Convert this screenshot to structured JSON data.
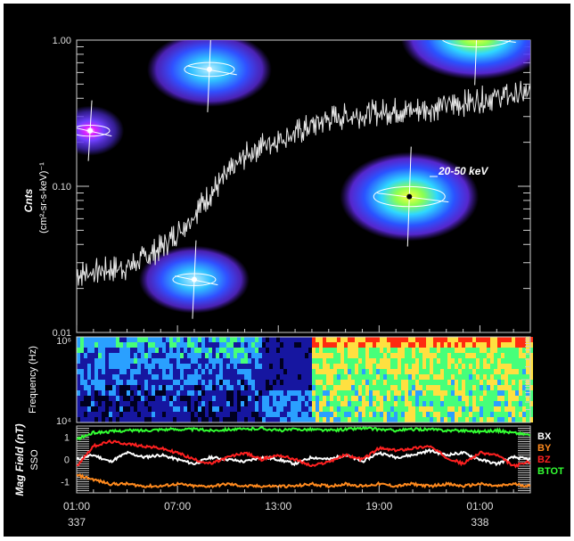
{
  "chart_data": [
    {
      "type": "line",
      "panel": "energetic-particle-counts",
      "ylabel": "Cnts",
      "ylabel_units": "(cm²-sr-s-keV)⁻¹",
      "y_scale": "log",
      "ylim": [
        0.01,
        1.0
      ],
      "y_ticks": [
        "1.00",
        "0.10",
        "0.01"
      ],
      "series": [
        {
          "name": "20-50 keV",
          "color": "#e8e8e8",
          "x_hours": [
            0,
            1,
            2,
            3,
            4,
            5,
            6,
            7,
            8,
            9,
            10,
            11,
            12,
            13,
            14,
            15,
            16,
            17,
            18,
            19,
            20,
            21,
            22,
            23,
            24,
            25,
            26,
            27
          ],
          "values": [
            0.025,
            0.026,
            0.027,
            0.028,
            0.032,
            0.038,
            0.048,
            0.065,
            0.09,
            0.12,
            0.16,
            0.19,
            0.21,
            0.23,
            0.26,
            0.29,
            0.3,
            0.31,
            0.32,
            0.33,
            0.33,
            0.34,
            0.36,
            0.37,
            0.39,
            0.41,
            0.42,
            0.43
          ]
        }
      ],
      "series_label": "20-50 keV",
      "images": [
        {
          "name": "small-purple-blob",
          "x_hours": 0.8,
          "y_value": 0.24
        },
        {
          "name": "upper-blob",
          "x_hours": 7.9,
          "y_value": 0.63
        },
        {
          "name": "top-right-blob",
          "x_hours": 23.8,
          "y_value": 1.05
        },
        {
          "name": "center-right-blob",
          "x_hours": 19.8,
          "y_value": 0.085
        },
        {
          "name": "lower-blob",
          "x_hours": 7.0,
          "y_value": 0.023
        }
      ]
    },
    {
      "type": "heatmap",
      "panel": "wave-spectrogram",
      "ylabel": "Frequency (Hz)",
      "y_scale": "log",
      "ylim": [
        10000,
        1000000
      ],
      "y_ticks": [
        "10⁶",
        "10⁴"
      ],
      "colormap": [
        "#000020",
        "#1616a0",
        "#2aa0ff",
        "#46ff7a",
        "#ffe040",
        "#ff2b10"
      ],
      "regions": [
        {
          "x_start_hours": 0,
          "x_end_hours": 11,
          "level": "low-mid"
        },
        {
          "x_start_hours": 11,
          "x_end_hours": 14,
          "level": "low"
        },
        {
          "x_start_hours": 14,
          "x_end_hours": 27,
          "level": "high"
        }
      ]
    },
    {
      "type": "line",
      "panel": "magnetic-field",
      "ylabel": "Mag Field (nT)",
      "ylabel2": "SSO",
      "ylim": [
        -1.5,
        1.5
      ],
      "y_ticks": [
        "1",
        "0",
        "-1"
      ],
      "x_ticks": [
        "01:00",
        "07:00",
        "13:00",
        "19:00",
        "01:00"
      ],
      "x_tick_hours": [
        0,
        6,
        12,
        18,
        24
      ],
      "x_day_labels": [
        {
          "hours": 0,
          "label": "337"
        },
        {
          "hours": 24,
          "label": "338"
        }
      ],
      "series": [
        {
          "name": "BX",
          "color": "#ffffff",
          "values": [
            0.0,
            0.2,
            -0.1,
            0.3,
            0.1,
            0.2,
            0.0,
            -0.2,
            0.1,
            0.0,
            -0.1,
            0.1,
            0.0,
            -0.2,
            0.1,
            0.0,
            0.2,
            -0.1,
            0.3,
            0.1,
            0.2,
            0.4,
            0.2,
            0.3,
            0.0,
            -0.2,
            0.1,
            0.0
          ]
        },
        {
          "name": "BY",
          "color": "#ff8a1e",
          "values": [
            -0.7,
            -0.9,
            -1.1,
            -1.1,
            -1.2,
            -1.2,
            -1.1,
            -1.2,
            -1.2,
            -1.1,
            -1.2,
            -1.2,
            -1.2,
            -1.2,
            -1.1,
            -1.2,
            -1.1,
            -1.2,
            -1.1,
            -1.2,
            -1.1,
            -1.2,
            -1.1,
            -1.2,
            -1.1,
            -1.2,
            -1.1,
            -1.2
          ]
        },
        {
          "name": "BZ",
          "color": "#ff2020",
          "values": [
            -0.3,
            0.6,
            0.8,
            0.7,
            0.6,
            0.5,
            0.3,
            0.0,
            -0.2,
            0.1,
            0.3,
            0.0,
            0.2,
            0.0,
            -0.3,
            -0.1,
            0.2,
            0.0,
            0.5,
            0.4,
            0.5,
            0.6,
            0.1,
            -0.2,
            0.3,
            0.2,
            -0.3,
            -0.1
          ]
        },
        {
          "name": "BTOT",
          "color": "#33ff33",
          "values": [
            0.9,
            1.2,
            1.25,
            1.3,
            1.3,
            1.35,
            1.35,
            1.35,
            1.3,
            1.35,
            1.35,
            1.4,
            1.3,
            1.35,
            1.35,
            1.3,
            1.35,
            1.4,
            1.35,
            1.3,
            1.35,
            1.35,
            1.3,
            1.3,
            1.25,
            1.3,
            1.2,
            1.1
          ]
        }
      ]
    }
  ]
}
